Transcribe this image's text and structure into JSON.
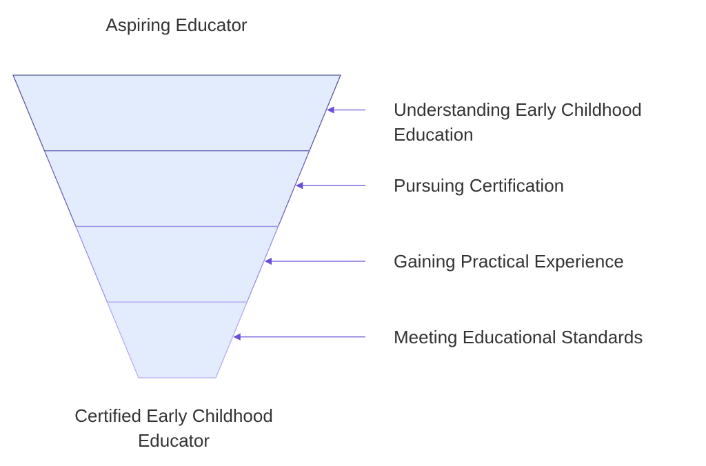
{
  "top_label": "Aspiring Educator",
  "bottom_label": "Certified Early Childhood Educator",
  "stages": [
    {
      "label": "Understanding Early Childhood Education"
    },
    {
      "label": "Pursuing Certification"
    },
    {
      "label": "Gaining Practical Experience"
    },
    {
      "label": "Meeting Educational Standards"
    }
  ]
}
